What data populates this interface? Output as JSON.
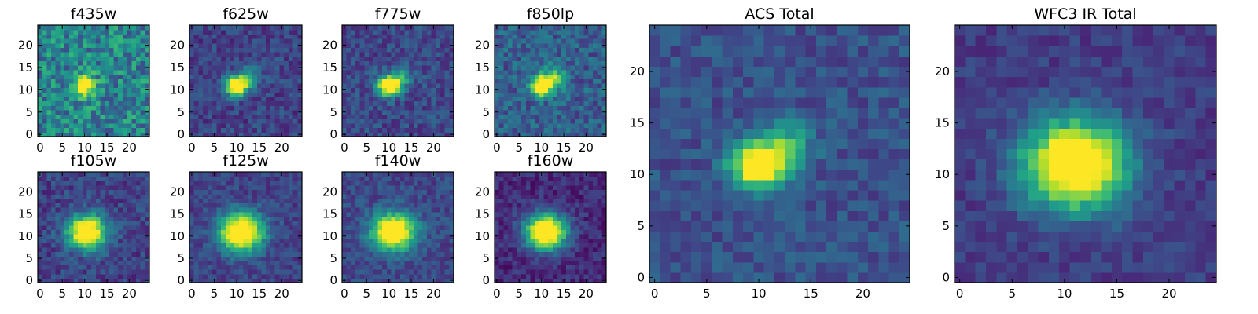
{
  "figure": {
    "background": "#ffffff",
    "colormap": "viridis",
    "colormap_stops": [
      "#440154",
      "#482878",
      "#3e4989",
      "#31688e",
      "#26828e",
      "#1f9e89",
      "#35b779",
      "#6ece58",
      "#b5de2b",
      "#fde725"
    ]
  },
  "chart_data": [
    {
      "type": "heatmap",
      "title": "f435w",
      "grid_size": 25,
      "xlim": [
        -0.5,
        24.5
      ],
      "ylim": [
        -0.5,
        24.5
      ],
      "xticks": [
        0,
        5,
        10,
        15,
        20
      ],
      "yticks": [
        0,
        5,
        10,
        15,
        20
      ],
      "source_center": [
        10,
        11
      ],
      "source_sigma": [
        1.6,
        1.6
      ],
      "background_level": 0.45,
      "noise": 0.22,
      "peak_level": 1.0,
      "secondary_blob": null
    },
    {
      "type": "heatmap",
      "title": "f625w",
      "grid_size": 25,
      "xlim": [
        -0.5,
        24.5
      ],
      "ylim": [
        -0.5,
        24.5
      ],
      "xticks": [
        0,
        5,
        10,
        15,
        20
      ],
      "yticks": [
        0,
        5,
        10,
        15,
        20
      ],
      "source_center": [
        10,
        11
      ],
      "source_sigma": [
        1.7,
        1.6
      ],
      "background_level": 0.2,
      "noise": 0.12,
      "peak_level": 1.0,
      "secondary_blob": [
        13,
        13,
        1.6,
        0.3
      ]
    },
    {
      "type": "heatmap",
      "title": "f775w",
      "grid_size": 25,
      "xlim": [
        -0.5,
        24.5
      ],
      "ylim": [
        -0.5,
        24.5
      ],
      "xticks": [
        0,
        5,
        10,
        15,
        20
      ],
      "yticks": [
        0,
        5,
        10,
        15,
        20
      ],
      "source_center": [
        10,
        11
      ],
      "source_sigma": [
        1.8,
        1.6
      ],
      "background_level": 0.22,
      "noise": 0.12,
      "peak_level": 1.0,
      "secondary_blob": [
        13,
        13,
        1.6,
        0.35
      ]
    },
    {
      "type": "heatmap",
      "title": "f850lp",
      "grid_size": 25,
      "xlim": [
        -0.5,
        24.5
      ],
      "ylim": [
        -0.5,
        24.5
      ],
      "xticks": [
        0,
        5,
        10,
        15,
        20
      ],
      "yticks": [
        0,
        5,
        10,
        15,
        20
      ],
      "source_center": [
        10,
        11
      ],
      "source_sigma": [
        1.8,
        1.6
      ],
      "background_level": 0.3,
      "noise": 0.15,
      "peak_level": 1.0,
      "secondary_blob": [
        13,
        13,
        1.7,
        0.45
      ]
    },
    {
      "type": "heatmap",
      "title": "f105w",
      "grid_size": 25,
      "xlim": [
        -0.5,
        24.5
      ],
      "ylim": [
        -0.5,
        24.5
      ],
      "xticks": [
        0,
        5,
        10,
        15,
        20
      ],
      "yticks": [
        0,
        5,
        10,
        15,
        20
      ],
      "source_center": [
        10.5,
        11
      ],
      "source_sigma": [
        3.0,
        2.6
      ],
      "background_level": 0.2,
      "noise": 0.12,
      "peak_level": 1.0,
      "secondary_blob": null
    },
    {
      "type": "heatmap",
      "title": "f125w",
      "grid_size": 25,
      "xlim": [
        -0.5,
        24.5
      ],
      "ylim": [
        -0.5,
        24.5
      ],
      "xticks": [
        0,
        5,
        10,
        15,
        20
      ],
      "yticks": [
        0,
        5,
        10,
        15,
        20
      ],
      "source_center": [
        11,
        11
      ],
      "source_sigma": [
        3.4,
        3.0
      ],
      "background_level": 0.2,
      "noise": 0.1,
      "peak_level": 1.0,
      "secondary_blob": null
    },
    {
      "type": "heatmap",
      "title": "f140w",
      "grid_size": 25,
      "xlim": [
        -0.5,
        24.5
      ],
      "ylim": [
        -0.5,
        24.5
      ],
      "xticks": [
        0,
        5,
        10,
        15,
        20
      ],
      "yticks": [
        0,
        5,
        10,
        15,
        20
      ],
      "source_center": [
        11,
        11
      ],
      "source_sigma": [
        3.4,
        2.9
      ],
      "background_level": 0.22,
      "noise": 0.1,
      "peak_level": 1.0,
      "secondary_blob": null
    },
    {
      "type": "heatmap",
      "title": "f160w",
      "grid_size": 25,
      "xlim": [
        -0.5,
        24.5
      ],
      "ylim": [
        -0.5,
        24.5
      ],
      "xticks": [
        0,
        5,
        10,
        15,
        20
      ],
      "yticks": [
        0,
        5,
        10,
        15,
        20
      ],
      "source_center": [
        11,
        11
      ],
      "source_sigma": [
        3.2,
        2.8
      ],
      "background_level": 0.12,
      "noise": 0.1,
      "peak_level": 1.0,
      "secondary_blob": null
    },
    {
      "type": "heatmap",
      "title": "ACS Total",
      "grid_size": 25,
      "xlim": [
        -0.5,
        24.5
      ],
      "ylim": [
        -0.5,
        24.5
      ],
      "xticks": [
        0,
        5,
        10,
        15,
        20
      ],
      "yticks": [
        0,
        5,
        10,
        15,
        20
      ],
      "source_center": [
        10,
        11
      ],
      "source_sigma": [
        1.8,
        1.6
      ],
      "background_level": 0.25,
      "noise": 0.1,
      "peak_level": 1.0,
      "secondary_blob": [
        13,
        13,
        1.6,
        0.35
      ]
    },
    {
      "type": "heatmap",
      "title": "WFC3 IR Total",
      "grid_size": 25,
      "xlim": [
        -0.5,
        24.5
      ],
      "ylim": [
        -0.5,
        24.5
      ],
      "xticks": [
        0,
        5,
        10,
        15,
        20
      ],
      "yticks": [
        0,
        5,
        10,
        15,
        20
      ],
      "source_center": [
        11,
        11
      ],
      "source_sigma": [
        3.4,
        3.0
      ],
      "background_level": 0.18,
      "noise": 0.08,
      "peak_level": 1.0,
      "secondary_blob": null
    }
  ]
}
